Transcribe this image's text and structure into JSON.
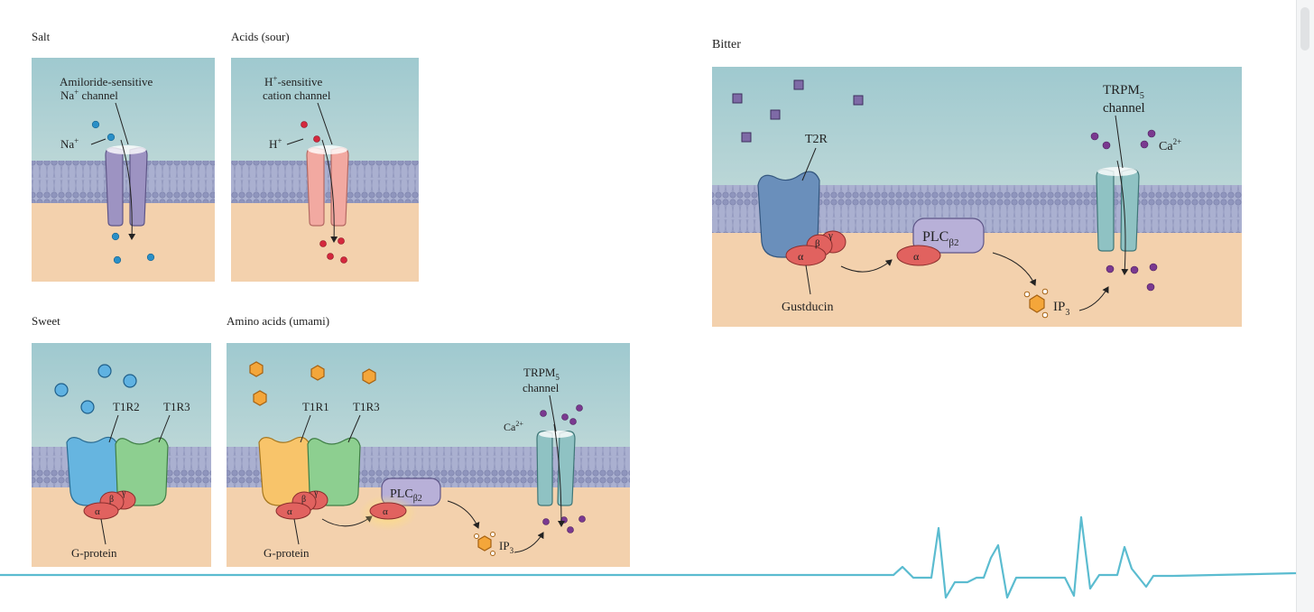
{
  "panels": {
    "salt": {
      "title": "Salt",
      "channel_label_1": "Amiloride-sensitive",
      "channel_label_2_prefix": "Na",
      "channel_label_2_sup": "+",
      "channel_label_2_suffix": " channel",
      "ion_prefix": "Na",
      "ion_sup": "+"
    },
    "sour": {
      "title": "Acids (sour)",
      "channel_label_1_prefix": "H",
      "channel_label_1_sup": "+",
      "channel_label_1_suffix": "-sensitive",
      "channel_label_2": "cation channel",
      "ion_prefix": "H",
      "ion_sup": "+"
    },
    "sweet": {
      "title": "Sweet",
      "receptor_1": "T1R2",
      "receptor_2": "T1R3",
      "g_protein": "G-protein"
    },
    "umami": {
      "title": "Amino acids (umami)",
      "receptor_1": "T1R1",
      "receptor_2": "T1R3",
      "g_protein": "G-protein",
      "channel_prefix": "TRPM",
      "channel_sub": "5",
      "channel_word": "channel",
      "ca_prefix": "Ca",
      "ca_sup": "2+",
      "plc_prefix": "PLC",
      "plc_sub": "β2",
      "ip_prefix": "IP",
      "ip_sub": "3"
    },
    "bitter": {
      "title": "Bitter",
      "receptor": "T2R",
      "channel_prefix": "TRPM",
      "channel_sub": "5",
      "channel_word": "channel",
      "ca_prefix": "Ca",
      "ca_sup": "2+",
      "plc_prefix": "PLC",
      "plc_sub": "β2",
      "ip_prefix": "IP",
      "ip_sub": "3",
      "g_protein": "Gustducin"
    }
  },
  "subunits": {
    "alpha": "α",
    "beta": "β",
    "gamma": "γ"
  },
  "colors": {
    "extracellular_top": "#a6cdd2",
    "extracellular_bottom": "#d8e4df",
    "membrane": "#9ea4c8",
    "cytoplasm": "#f3d1ad",
    "salt_channel": "#9d93c2",
    "sour_channel": "#f2a9a1",
    "t1r2": "#66b5e0",
    "t1r3": "#8dcf90",
    "t1r1": "#f8c46a",
    "t2r": "#6a8fbb",
    "trpm5": "#8fc2c3",
    "g_protein": "#e1625f",
    "plc": "#b8b0d8",
    "na_ion": "#2a8fc7",
    "h_ion": "#d4283d",
    "ca_ion": "#7a3990",
    "bitter_ligand": "#7e6aa6",
    "amino_ligand": "#f1a93a",
    "accent_line": "#5bbcd0"
  }
}
